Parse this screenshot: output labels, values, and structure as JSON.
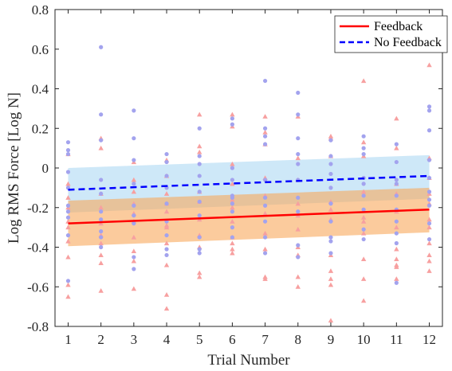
{
  "chart_data": {
    "type": "scatter",
    "xlabel": "Trial Number",
    "ylabel": "Log RMS Force [Log N]",
    "xlim": [
      0.6,
      12.4
    ],
    "ylim": [
      -0.8,
      0.8
    ],
    "x_ticks": [
      1,
      2,
      3,
      4,
      5,
      6,
      7,
      8,
      9,
      10,
      11,
      12
    ],
    "y_ticks": [
      -0.8,
      -0.6,
      -0.4,
      -0.2,
      0,
      0.2,
      0.4,
      0.6,
      0.8
    ],
    "y_tick_labels": [
      "-0.8",
      "-0.6",
      "-0.4",
      "-0.2",
      "0",
      "0.2",
      "0.4",
      "0.6",
      "0.8"
    ],
    "grid": false,
    "legend_position": "top-right",
    "series": [
      {
        "name": "Feedback",
        "color": "#ff0000",
        "fit": {
          "x": [
            1,
            12
          ],
          "y": [
            -0.28,
            -0.21
          ]
        },
        "band": {
          "x": [
            1,
            12
          ],
          "lower": [
            -0.395,
            -0.325
          ],
          "upper": [
            -0.165,
            -0.1
          ]
        },
        "band_color": "#f9a85c",
        "points": {
          "marker": "triangle",
          "color": "#f7a0a0",
          "x": [
            1,
            1,
            1,
            1,
            1,
            1,
            1,
            1,
            1,
            1,
            2,
            2,
            2,
            2,
            2,
            2,
            2,
            2,
            2,
            2,
            3,
            3,
            3,
            3,
            3,
            3,
            3,
            3,
            3,
            3,
            4,
            4,
            4,
            4,
            4,
            4,
            4,
            4,
            4,
            4,
            4,
            5,
            5,
            5,
            5,
            5,
            5,
            5,
            5,
            5,
            5,
            6,
            6,
            6,
            6,
            6,
            6,
            6,
            6,
            6,
            6,
            6,
            7,
            7,
            7,
            7,
            7,
            7,
            7,
            7,
            7,
            7,
            8,
            8,
            8,
            8,
            8,
            8,
            8,
            8,
            8,
            8,
            9,
            9,
            9,
            9,
            9,
            9,
            9,
            9,
            9,
            9,
            9,
            10,
            10,
            10,
            10,
            10,
            10,
            10,
            10,
            10,
            10,
            11,
            11,
            11,
            11,
            11,
            11,
            11,
            11,
            11,
            11,
            11,
            12,
            12,
            12,
            12,
            12,
            12,
            12,
            12,
            12,
            12,
            12
          ],
          "y": [
            0.07,
            -0.08,
            -0.15,
            -0.2,
            -0.27,
            -0.3,
            -0.37,
            -0.45,
            -0.59,
            -0.65,
            0.15,
            0.1,
            -0.13,
            -0.2,
            -0.28,
            -0.34,
            -0.38,
            -0.44,
            -0.48,
            -0.62,
            0.03,
            -0.06,
            -0.12,
            -0.18,
            -0.23,
            -0.27,
            -0.35,
            -0.42,
            -0.47,
            -0.61,
            0.04,
            -0.04,
            -0.13,
            -0.18,
            -0.22,
            -0.29,
            -0.3,
            -0.38,
            -0.49,
            -0.64,
            -0.71,
            0.27,
            0.11,
            0.08,
            -0.12,
            -0.17,
            -0.26,
            -0.34,
            -0.4,
            -0.53,
            -0.55,
            0.27,
            0.21,
            0.02,
            -0.08,
            -0.16,
            -0.2,
            -0.27,
            -0.35,
            -0.38,
            -0.41,
            -0.43,
            0.26,
            0.18,
            0.12,
            -0.05,
            -0.14,
            -0.23,
            -0.33,
            -0.41,
            -0.55,
            -0.56,
            0.26,
            0.05,
            -0.06,
            -0.18,
            -0.24,
            -0.31,
            -0.4,
            -0.44,
            -0.55,
            -0.6,
            0.16,
            0.15,
            0.06,
            -0.17,
            -0.21,
            -0.26,
            -0.44,
            -0.52,
            -0.56,
            -0.59,
            -0.77,
            0.44,
            0.13,
            0.06,
            -0.12,
            -0.25,
            -0.27,
            -0.33,
            -0.46,
            -0.56,
            -0.67,
            0.25,
            0.1,
            -0.08,
            -0.13,
            -0.22,
            -0.3,
            -0.41,
            -0.46,
            -0.49,
            -0.5,
            -0.56,
            0.52,
            0.05,
            -0.05,
            -0.13,
            -0.18,
            -0.26,
            -0.3,
            -0.38,
            -0.44,
            -0.47,
            -0.52
          ]
        }
      },
      {
        "name": "No Feedback",
        "color": "#0000ff",
        "line_style": "dashed",
        "fit": {
          "x": [
            1,
            12
          ],
          "y": [
            -0.11,
            -0.04
          ]
        },
        "band": {
          "x": [
            1,
            12
          ],
          "lower": [
            -0.225,
            -0.155
          ],
          "upper": [
            0.0,
            0.065
          ]
        },
        "band_color": "#a6d6f3",
        "points": {
          "marker": "circle",
          "color": "#a3a3ee",
          "x": [
            1,
            1,
            1,
            1,
            1,
            1,
            1,
            1,
            1,
            1,
            2,
            2,
            2,
            2,
            2,
            2,
            2,
            2,
            2,
            2,
            3,
            3,
            3,
            3,
            3,
            3,
            3,
            3,
            3,
            4,
            4,
            4,
            4,
            4,
            4,
            4,
            4,
            4,
            5,
            5,
            5,
            5,
            5,
            5,
            5,
            5,
            5,
            5,
            6,
            6,
            6,
            6,
            6,
            6,
            6,
            6,
            6,
            6,
            7,
            7,
            7,
            7,
            7,
            7,
            7,
            7,
            7,
            7,
            8,
            8,
            8,
            8,
            8,
            8,
            8,
            8,
            8,
            8,
            9,
            9,
            9,
            9,
            9,
            9,
            9,
            9,
            9,
            9,
            10,
            10,
            10,
            10,
            10,
            10,
            10,
            10,
            10,
            11,
            11,
            11,
            11,
            11,
            11,
            11,
            11,
            11,
            11,
            12,
            12,
            12,
            12,
            12,
            12,
            12,
            12,
            12,
            12
          ],
          "y": [
            0.13,
            0.09,
            0.07,
            -0.02,
            -0.1,
            -0.19,
            -0.22,
            -0.25,
            -0.34,
            -0.57,
            0.61,
            0.27,
            0.14,
            -0.06,
            -0.13,
            -0.22,
            -0.26,
            -0.32,
            -0.35,
            -0.4,
            0.29,
            0.15,
            0.04,
            -0.08,
            -0.19,
            -0.24,
            -0.28,
            -0.45,
            -0.51,
            0.07,
            0.03,
            -0.04,
            -0.1,
            -0.18,
            -0.27,
            -0.34,
            -0.41,
            -0.44,
            0.2,
            0.06,
            0.02,
            -0.04,
            -0.12,
            -0.17,
            -0.24,
            -0.35,
            -0.41,
            -0.43,
            0.25,
            0.22,
            0.0,
            -0.06,
            -0.14,
            -0.15,
            -0.18,
            -0.22,
            -0.3,
            -0.35,
            0.44,
            0.2,
            0.16,
            0.12,
            -0.06,
            -0.15,
            -0.19,
            -0.27,
            -0.35,
            -0.43,
            0.38,
            0.27,
            0.15,
            0.07,
            0.02,
            -0.06,
            -0.15,
            -0.22,
            -0.39,
            -0.45,
            0.14,
            0.06,
            0.02,
            -0.03,
            -0.1,
            -0.18,
            -0.27,
            -0.35,
            -0.37,
            -0.43,
            0.16,
            0.1,
            0.07,
            -0.05,
            -0.08,
            -0.14,
            -0.21,
            -0.31,
            -0.36,
            0.12,
            0.03,
            -0.06,
            -0.08,
            -0.14,
            -0.21,
            -0.27,
            -0.33,
            -0.38,
            -0.58,
            0.31,
            0.29,
            0.19,
            0.04,
            -0.05,
            -0.12,
            -0.16,
            -0.19,
            -0.28,
            -0.36
          ]
        }
      }
    ]
  }
}
